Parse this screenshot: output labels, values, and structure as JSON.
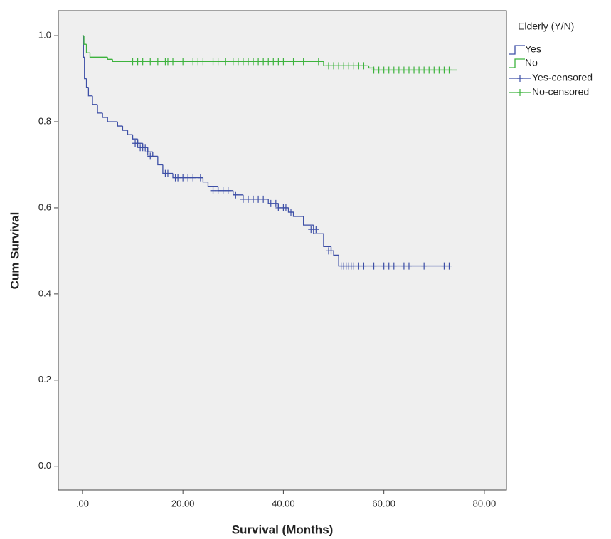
{
  "chart_data": {
    "type": "step",
    "xlabel": "Survival (Months)",
    "ylabel": "Cum Survival",
    "legend_title": "Elderly (Y/N)",
    "xlim": [
      -4.8,
      84.4
    ],
    "ylim": [
      -0.055,
      1.058
    ],
    "xticks": [
      {
        "value": 0,
        "label": ".00"
      },
      {
        "value": 20,
        "label": "20.00"
      },
      {
        "value": 40,
        "label": "40.00"
      },
      {
        "value": 60,
        "label": "60.00"
      },
      {
        "value": 80,
        "label": "80.00"
      }
    ],
    "yticks": [
      {
        "value": 0,
        "label": "0.0"
      },
      {
        "value": 0.2,
        "label": "0.2"
      },
      {
        "value": 0.4,
        "label": "0.4"
      },
      {
        "value": 0.6,
        "label": "0.6"
      },
      {
        "value": 0.8,
        "label": "0.8"
      },
      {
        "value": 1,
        "label": "1.0"
      }
    ],
    "series": [
      {
        "name": "Yes",
        "color": "#3d4fa6",
        "kind": "step",
        "x": [
          0,
          0.2,
          0.4,
          0.8,
          1.2,
          2,
          3,
          4,
          5,
          7,
          8,
          9,
          10,
          11,
          12,
          13,
          14,
          15,
          16,
          18,
          24,
          25,
          27,
          30,
          32,
          37,
          39,
          41,
          42,
          44,
          46,
          48,
          49.5,
          50,
          51,
          73
        ],
        "values": [
          1.0,
          0.95,
          0.9,
          0.88,
          0.86,
          0.84,
          0.82,
          0.81,
          0.8,
          0.79,
          0.78,
          0.77,
          0.76,
          0.75,
          0.74,
          0.73,
          0.72,
          0.7,
          0.68,
          0.67,
          0.66,
          0.65,
          0.64,
          0.63,
          0.62,
          0.61,
          0.6,
          0.59,
          0.58,
          0.56,
          0.54,
          0.51,
          0.5,
          0.49,
          0.465,
          0.465
        ]
      },
      {
        "name": "No",
        "color": "#3db33d",
        "kind": "step",
        "x": [
          0,
          0.3,
          0.8,
          1.5,
          5,
          6,
          48,
          57,
          58,
          74.5
        ],
        "values": [
          1.0,
          0.98,
          0.96,
          0.95,
          0.945,
          0.94,
          0.93,
          0.925,
          0.92,
          0.92
        ]
      },
      {
        "name": "Yes-censored",
        "color": "#3d4fa6",
        "kind": "censored",
        "x": [
          10.5,
          11,
          11.5,
          12,
          12.5,
          13,
          13.5,
          16.5,
          17,
          18.5,
          19,
          20,
          21,
          22,
          23.5,
          26,
          27,
          28,
          29,
          30.5,
          32,
          33,
          34,
          35,
          36,
          37.5,
          38.5,
          39,
          40,
          40.5,
          41.5,
          45.5,
          46.5,
          49,
          49.5,
          51.5,
          52,
          52.5,
          53,
          53.5,
          54,
          55,
          56,
          58,
          60,
          61,
          62,
          64,
          65,
          68,
          72,
          73
        ],
        "values": [
          0.75,
          0.75,
          0.74,
          0.74,
          0.74,
          0.73,
          0.72,
          0.68,
          0.68,
          0.67,
          0.67,
          0.67,
          0.67,
          0.67,
          0.67,
          0.64,
          0.64,
          0.64,
          0.64,
          0.63,
          0.62,
          0.62,
          0.62,
          0.62,
          0.62,
          0.61,
          0.61,
          0.6,
          0.6,
          0.6,
          0.59,
          0.55,
          0.55,
          0.5,
          0.5,
          0.465,
          0.465,
          0.465,
          0.465,
          0.465,
          0.465,
          0.465,
          0.465,
          0.465,
          0.465,
          0.465,
          0.465,
          0.465,
          0.465,
          0.465,
          0.465,
          0.465
        ]
      },
      {
        "name": "No-censored",
        "color": "#3db33d",
        "kind": "censored",
        "x": [
          10,
          11,
          12,
          13.5,
          15,
          16.5,
          17,
          18,
          20,
          22,
          23,
          24,
          26,
          27,
          28.5,
          30,
          31,
          32,
          33,
          34,
          35,
          36,
          37,
          38,
          39,
          40,
          42,
          44,
          47,
          49,
          50,
          51,
          52,
          53,
          54,
          55,
          56,
          58,
          59,
          60,
          61,
          62,
          63,
          64,
          65,
          66,
          67,
          68,
          69,
          70,
          71,
          72,
          73
        ],
        "values": [
          0.94,
          0.94,
          0.94,
          0.94,
          0.94,
          0.94,
          0.94,
          0.94,
          0.94,
          0.94,
          0.94,
          0.94,
          0.94,
          0.94,
          0.94,
          0.94,
          0.94,
          0.94,
          0.94,
          0.94,
          0.94,
          0.94,
          0.94,
          0.94,
          0.94,
          0.94,
          0.94,
          0.94,
          0.94,
          0.93,
          0.93,
          0.93,
          0.93,
          0.93,
          0.93,
          0.93,
          0.93,
          0.92,
          0.92,
          0.92,
          0.92,
          0.92,
          0.92,
          0.92,
          0.92,
          0.92,
          0.92,
          0.92,
          0.92,
          0.92,
          0.92,
          0.92,
          0.92
        ]
      }
    ]
  }
}
